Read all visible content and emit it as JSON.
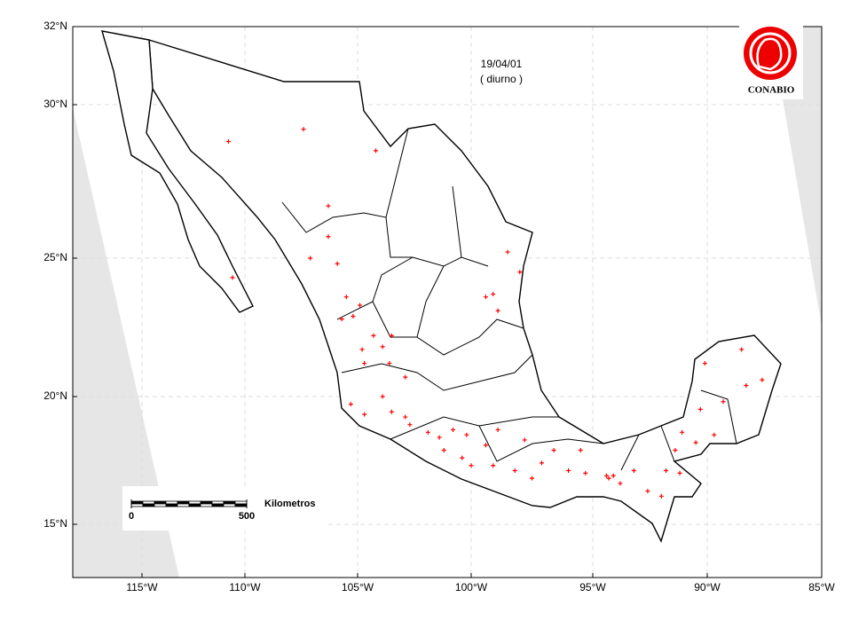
{
  "chart_data": {
    "type": "scatter",
    "title": "19/04/01",
    "subtitle": "( diurno )",
    "logo": "CONABIO",
    "scale_bar": {
      "label": "Kilometros",
      "ticks": [
        0,
        500
      ]
    },
    "xlim": [
      -118.3,
      -85
    ],
    "ylim": [
      13,
      32
    ],
    "xticks": [
      {
        "value": -115,
        "label": "115°W"
      },
      {
        "value": -110,
        "label": "110°W"
      },
      {
        "value": -105,
        "label": "105°W"
      },
      {
        "value": -100,
        "label": "100°W"
      },
      {
        "value": -95,
        "label": "95°W"
      },
      {
        "value": -90,
        "label": "90°W"
      },
      {
        "value": -85,
        "label": "85°W"
      }
    ],
    "yticks": [
      {
        "value": 15,
        "label": "15°N"
      },
      {
        "value": 20,
        "label": "20°N"
      },
      {
        "value": 25,
        "label": "25°N"
      },
      {
        "value": 30,
        "label": "30°N"
      },
      {
        "value": 32,
        "label": "32°N"
      }
    ],
    "grid": true,
    "series": [
      {
        "color": "#ff0000",
        "x": [
          -107.4,
          -110.8,
          -104.2,
          -106.3,
          -106.3,
          -105.9,
          -107.1,
          -110.6,
          -105.5,
          -104.9,
          -105.2,
          -105.7,
          -104.3,
          -103.9,
          -103.5,
          -104.8,
          -104.7,
          -103.6,
          -102.9,
          -103.9,
          -103.5,
          -102.9,
          -102.7,
          -101.9,
          -101.4,
          -100.8,
          -100.2,
          -101.2,
          -100.4,
          -100.0,
          -99.4,
          -99.1,
          -98.9,
          -98.2,
          -97.8,
          -97.5,
          -97.1,
          -96.6,
          -96.0,
          -95.5,
          -95.3,
          -94.4,
          -94.3,
          -94.1,
          -93.8,
          -93.2,
          -92.6,
          -92.0,
          -91.8,
          -91.4,
          -91.2,
          -90.5,
          -90.3,
          -90.1,
          -89.3,
          -88.5,
          -88.3,
          -87.6,
          -89.7,
          -91.1,
          -99.1,
          -98.9,
          -98.5,
          -98.0,
          -99.4,
          -104.7,
          -105.3
        ],
        "y": [
          29.2,
          28.8,
          28.5,
          26.7,
          25.7,
          24.8,
          25.0,
          24.3,
          23.6,
          23.3,
          22.9,
          22.8,
          22.2,
          21.8,
          22.2,
          21.7,
          21.2,
          21.2,
          20.7,
          20.0,
          19.4,
          19.2,
          18.9,
          18.6,
          18.4,
          18.7,
          18.5,
          17.9,
          17.6,
          17.3,
          18.1,
          17.3,
          18.7,
          17.1,
          18.3,
          16.8,
          17.4,
          17.9,
          17.1,
          17.9,
          17.0,
          16.9,
          16.8,
          16.9,
          16.6,
          17.1,
          16.3,
          16.1,
          17.1,
          17.9,
          17.0,
          18.2,
          19.5,
          21.2,
          19.8,
          21.7,
          20.4,
          20.6,
          18.5,
          18.6,
          23.7,
          23.1,
          25.2,
          24.5,
          23.6,
          19.3,
          19.7
        ]
      }
    ]
  }
}
